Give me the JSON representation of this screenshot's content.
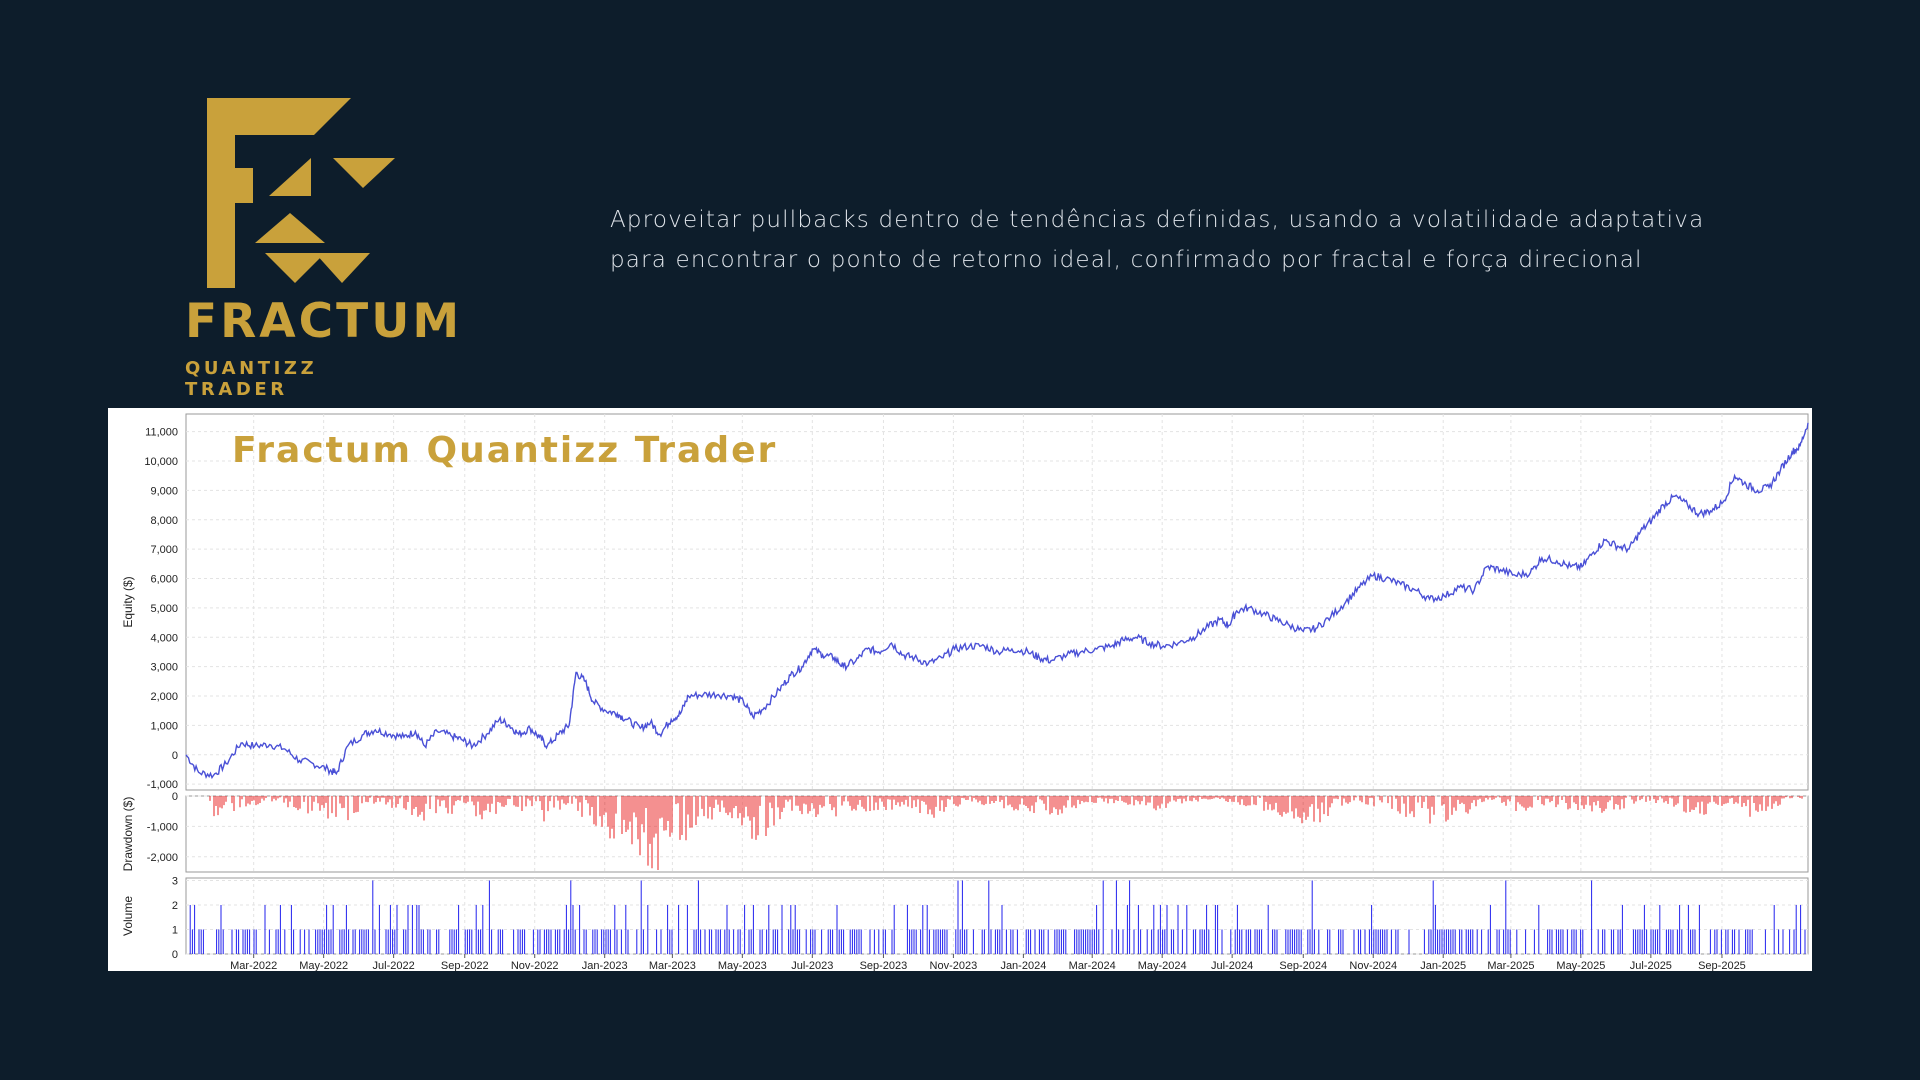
{
  "brand": {
    "name": "FRACTUM",
    "subtitle": "QUANTIZZ TRADER",
    "accent_color": "#c9a13b",
    "background_color": "#0d1d2b"
  },
  "tagline": {
    "line1": "Aproveitar pullbacks dentro de tendências definidas,  usando a volatilidade adaptativa",
    "line2": "para encontrar o ponto de retorno ideal, confirmado por fractal e força direcional"
  },
  "chart_data": {
    "type": "line",
    "title": "Fractum Quantizz Trader",
    "x_tick_labels": [
      "Mar-2022",
      "May-2022",
      "Jul-2022",
      "Sep-2022",
      "Nov-2022",
      "Jan-2023",
      "Mar-2023",
      "May-2023",
      "Jul-2023",
      "Sep-2023",
      "Nov-2023",
      "Jan-2024",
      "Mar-2024",
      "May-2024",
      "Jul-2024",
      "Sep-2024",
      "Nov-2024",
      "Jan-2025",
      "Mar-2025",
      "May-2025",
      "Jul-2025",
      "Sep-2025"
    ],
    "x_range": [
      "2022-01-01",
      "2025-11-15"
    ],
    "grid": true,
    "panels": [
      {
        "name": "equity",
        "ylabel": "Equity ($)",
        "ylim": [
          -1200,
          11600
        ],
        "y_ticks": [
          -1000,
          0,
          1000,
          2000,
          3000,
          4000,
          5000,
          6000,
          7000,
          8000,
          9000,
          10000,
          11000
        ],
        "y_tick_labels": [
          "-1,000",
          "0",
          "1,000",
          "2,000",
          "3,000",
          "4,000",
          "5,000",
          "6,000",
          "7,000",
          "8,000",
          "9,000",
          "10,000",
          "11,000"
        ],
        "series_color": "#4a50d6",
        "points": [
          [
            "2022-01-01",
            0
          ],
          [
            "2022-01-12",
            -600
          ],
          [
            "2022-01-25",
            -700
          ],
          [
            "2022-02-05",
            -300
          ],
          [
            "2022-02-18",
            400
          ],
          [
            "2022-03-02",
            300
          ],
          [
            "2022-03-15",
            350
          ],
          [
            "2022-03-28",
            200
          ],
          [
            "2022-04-10",
            -200
          ],
          [
            "2022-04-22",
            -300
          ],
          [
            "2022-05-05",
            -500
          ],
          [
            "2022-05-12",
            -650
          ],
          [
            "2022-05-22",
            300
          ],
          [
            "2022-06-05",
            700
          ],
          [
            "2022-06-15",
            850
          ],
          [
            "2022-06-28",
            700
          ],
          [
            "2022-07-10",
            600
          ],
          [
            "2022-07-20",
            800
          ],
          [
            "2022-07-28",
            300
          ],
          [
            "2022-08-08",
            800
          ],
          [
            "2022-08-20",
            650
          ],
          [
            "2022-08-30",
            500
          ],
          [
            "2022-09-08",
            300
          ],
          [
            "2022-09-20",
            700
          ],
          [
            "2022-10-01",
            1200
          ],
          [
            "2022-10-10",
            1000
          ],
          [
            "2022-10-18",
            700
          ],
          [
            "2022-10-28",
            900
          ],
          [
            "2022-11-05",
            600
          ],
          [
            "2022-11-12",
            300
          ],
          [
            "2022-11-22",
            700
          ],
          [
            "2022-12-01",
            1000
          ],
          [
            "2022-12-07",
            2800
          ],
          [
            "2022-12-15",
            2500
          ],
          [
            "2022-12-22",
            1800
          ],
          [
            "2023-01-02",
            1500
          ],
          [
            "2023-01-12",
            1400
          ],
          [
            "2023-01-20",
            1200
          ],
          [
            "2023-02-01",
            900
          ],
          [
            "2023-02-10",
            1100
          ],
          [
            "2023-02-18",
            700
          ],
          [
            "2023-02-28",
            1200
          ],
          [
            "2023-03-08",
            1400
          ],
          [
            "2023-03-15",
            2000
          ],
          [
            "2023-03-28",
            2050
          ],
          [
            "2023-04-10",
            2050
          ],
          [
            "2023-04-22",
            2000
          ],
          [
            "2023-05-02",
            1800
          ],
          [
            "2023-05-10",
            1300
          ],
          [
            "2023-05-20",
            1600
          ],
          [
            "2023-06-02",
            2200
          ],
          [
            "2023-06-12",
            2700
          ],
          [
            "2023-06-22",
            3000
          ],
          [
            "2023-07-01",
            3600
          ],
          [
            "2023-07-10",
            3400
          ],
          [
            "2023-07-20",
            3300
          ],
          [
            "2023-07-28",
            3000
          ],
          [
            "2023-08-08",
            3200
          ],
          [
            "2023-08-18",
            3600
          ],
          [
            "2023-08-28",
            3500
          ],
          [
            "2023-09-08",
            3800
          ],
          [
            "2023-09-18",
            3400
          ],
          [
            "2023-09-28",
            3300
          ],
          [
            "2023-10-10",
            3100
          ],
          [
            "2023-10-22",
            3300
          ],
          [
            "2023-11-02",
            3600
          ],
          [
            "2023-11-15",
            3700
          ],
          [
            "2023-11-28",
            3700
          ],
          [
            "2023-12-10",
            3500
          ],
          [
            "2023-12-22",
            3600
          ],
          [
            "2024-01-05",
            3500
          ],
          [
            "2024-01-15",
            3300
          ],
          [
            "2024-01-25",
            3200
          ],
          [
            "2024-02-08",
            3400
          ],
          [
            "2024-02-20",
            3500
          ],
          [
            "2024-03-05",
            3600
          ],
          [
            "2024-03-18",
            3700
          ],
          [
            "2024-03-28",
            3900
          ],
          [
            "2024-04-08",
            4000
          ],
          [
            "2024-04-20",
            3800
          ],
          [
            "2024-05-02",
            3700
          ],
          [
            "2024-05-15",
            3800
          ],
          [
            "2024-05-28",
            4000
          ],
          [
            "2024-06-08",
            4300
          ],
          [
            "2024-06-20",
            4600
          ],
          [
            "2024-06-28",
            4400
          ],
          [
            "2024-07-05",
            4900
          ],
          [
            "2024-07-15",
            5000
          ],
          [
            "2024-07-28",
            4800
          ],
          [
            "2024-08-08",
            4600
          ],
          [
            "2024-08-20",
            4400
          ],
          [
            "2024-09-01",
            4200
          ],
          [
            "2024-09-12",
            4300
          ],
          [
            "2024-09-25",
            4700
          ],
          [
            "2024-10-08",
            5200
          ],
          [
            "2024-10-20",
            5700
          ],
          [
            "2024-11-01",
            6100
          ],
          [
            "2024-11-12",
            6000
          ],
          [
            "2024-11-25",
            5800
          ],
          [
            "2024-12-08",
            5600
          ],
          [
            "2024-12-20",
            5300
          ],
          [
            "2025-01-02",
            5400
          ],
          [
            "2025-01-15",
            5700
          ],
          [
            "2025-01-28",
            5600
          ],
          [
            "2025-02-08",
            6400
          ],
          [
            "2025-02-20",
            6300
          ],
          [
            "2025-03-05",
            6100
          ],
          [
            "2025-03-18",
            6200
          ],
          [
            "2025-03-28",
            6700
          ],
          [
            "2025-04-10",
            6600
          ],
          [
            "2025-04-22",
            6400
          ],
          [
            "2025-05-02",
            6400
          ],
          [
            "2025-05-12",
            6900
          ],
          [
            "2025-05-22",
            7300
          ],
          [
            "2025-06-02",
            7100
          ],
          [
            "2025-06-12",
            7000
          ],
          [
            "2025-06-22",
            7600
          ],
          [
            "2025-07-02",
            8000
          ],
          [
            "2025-07-12",
            8500
          ],
          [
            "2025-07-22",
            8800
          ],
          [
            "2025-08-02",
            8500
          ],
          [
            "2025-08-12",
            8200
          ],
          [
            "2025-08-22",
            8300
          ],
          [
            "2025-09-02",
            8600
          ],
          [
            "2025-09-12",
            9500
          ],
          [
            "2025-09-22",
            9200
          ],
          [
            "2025-10-02",
            9000
          ],
          [
            "2025-10-12",
            9100
          ],
          [
            "2025-10-22",
            9700
          ],
          [
            "2025-11-01",
            10300
          ],
          [
            "2025-11-08",
            10500
          ],
          [
            "2025-11-15",
            11300
          ]
        ]
      },
      {
        "name": "drawdown",
        "ylabel": "Drawdown ($)",
        "ylim": [
          -2500,
          0
        ],
        "y_ticks": [
          0,
          -1000,
          -2000
        ],
        "y_tick_labels": [
          "0",
          "-1,000",
          "-2,000"
        ],
        "series_color": "#e82020",
        "points": [
          [
            "2022-01-20",
            -700
          ],
          [
            "2022-02-10",
            -500
          ],
          [
            "2022-03-20",
            -150
          ],
          [
            "2022-04-15",
            -600
          ],
          [
            "2022-05-10",
            -1100
          ],
          [
            "2022-06-10",
            -200
          ],
          [
            "2022-07-05",
            -400
          ],
          [
            "2022-07-28",
            -750
          ],
          [
            "2022-08-25",
            -500
          ],
          [
            "2022-09-15",
            -850
          ],
          [
            "2022-10-10",
            -300
          ],
          [
            "2022-10-30",
            -600
          ],
          [
            "2022-11-12",
            -950
          ],
          [
            "2022-12-01",
            -300
          ],
          [
            "2022-12-25",
            -1000
          ],
          [
            "2023-01-08",
            -1400
          ],
          [
            "2023-01-22",
            -1700
          ],
          [
            "2023-02-05",
            -2100
          ],
          [
            "2023-02-15",
            -2300
          ],
          [
            "2023-02-28",
            -1600
          ],
          [
            "2023-03-10",
            -1400
          ],
          [
            "2023-04-05",
            -800
          ],
          [
            "2023-04-25",
            -700
          ],
          [
            "2023-05-08",
            -1600
          ],
          [
            "2023-05-18",
            -1400
          ],
          [
            "2023-06-10",
            -500
          ],
          [
            "2023-07-25",
            -800
          ],
          [
            "2023-08-10",
            -500
          ],
          [
            "2023-09-25",
            -400
          ],
          [
            "2023-10-15",
            -800
          ],
          [
            "2023-11-10",
            -200
          ],
          [
            "2023-12-15",
            -400
          ],
          [
            "2024-01-20",
            -700
          ],
          [
            "2024-02-20",
            -400
          ],
          [
            "2024-03-25",
            -200
          ],
          [
            "2024-04-25",
            -500
          ],
          [
            "2024-05-10",
            -400
          ],
          [
            "2024-06-15",
            -100
          ],
          [
            "2024-07-25",
            -400
          ],
          [
            "2024-08-25",
            -900
          ],
          [
            "2024-09-05",
            -1000
          ],
          [
            "2024-10-15",
            -200
          ],
          [
            "2024-11-15",
            -400
          ],
          [
            "2024-12-05",
            -900
          ],
          [
            "2024-12-20",
            -1200
          ],
          [
            "2025-01-20",
            -600
          ],
          [
            "2025-02-10",
            -100
          ],
          [
            "2025-03-05",
            -500
          ],
          [
            "2025-04-15",
            -400
          ],
          [
            "2025-05-15",
            -600
          ],
          [
            "2025-06-15",
            -300
          ],
          [
            "2025-07-10",
            -200
          ],
          [
            "2025-08-10",
            -700
          ],
          [
            "2025-09-08",
            -200
          ],
          [
            "2025-09-28",
            -800
          ],
          [
            "2025-10-10",
            -600
          ],
          [
            "2025-10-25",
            -200
          ],
          [
            "2025-11-10",
            -100
          ]
        ]
      },
      {
        "name": "volume",
        "ylabel": "Volume",
        "ylim": [
          0,
          3.1
        ],
        "y_ticks": [
          0,
          1,
          2,
          3
        ],
        "y_tick_labels": [
          "0",
          "1",
          "2",
          "3"
        ],
        "series_color": "#2222ee",
        "values_allowed": [
          0,
          1,
          2,
          3
        ]
      }
    ]
  }
}
